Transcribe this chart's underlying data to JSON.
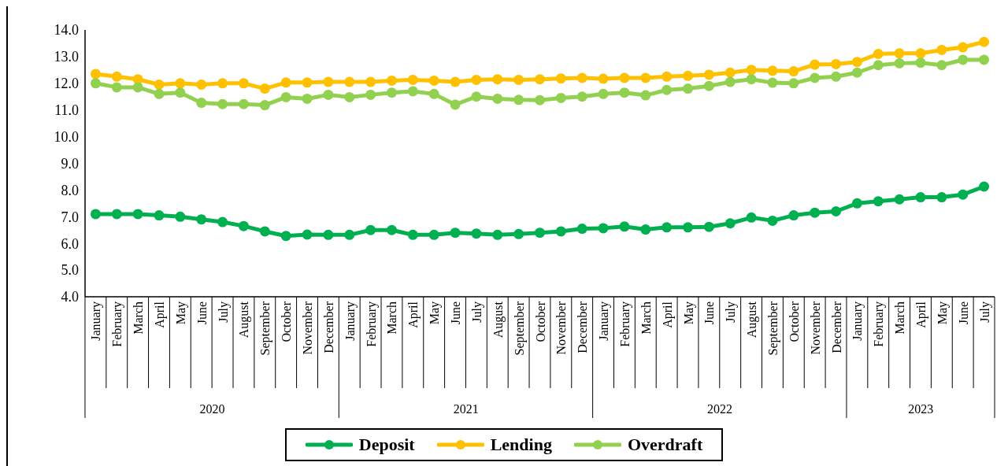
{
  "chart_data": {
    "type": "line",
    "categories": [
      "January",
      "February",
      "March",
      "April",
      "May",
      "June",
      "July",
      "August",
      "September",
      "October",
      "November",
      "December",
      "January",
      "February",
      "March",
      "April",
      "May",
      "June",
      "July",
      "August",
      "September",
      "October",
      "November",
      "December",
      "January",
      "February",
      "March",
      "April",
      "May",
      "June",
      "July",
      "August",
      "September",
      "October",
      "November",
      "December",
      "January",
      "February",
      "March",
      "April",
      "May",
      "June",
      "July"
    ],
    "annotations": [
      "2020",
      "2021",
      "2022",
      "2023"
    ],
    "series": [
      {
        "name": "Deposit",
        "color": "#00b050",
        "values": [
          7.1,
          7.1,
          7.1,
          7.05,
          7.0,
          6.9,
          6.8,
          6.65,
          6.45,
          6.28,
          6.33,
          6.32,
          6.32,
          6.5,
          6.5,
          6.32,
          6.32,
          6.4,
          6.37,
          6.32,
          6.35,
          6.4,
          6.45,
          6.55,
          6.57,
          6.63,
          6.52,
          6.6,
          6.6,
          6.62,
          6.75,
          6.97,
          6.85,
          7.05,
          7.15,
          7.2,
          7.5,
          7.58,
          7.65,
          7.73,
          7.73,
          7.83,
          8.13
        ]
      },
      {
        "name": "Lending",
        "color": "#ffc000",
        "values": [
          12.35,
          12.25,
          12.15,
          11.95,
          12.0,
          11.95,
          12.0,
          12.0,
          11.8,
          12.03,
          12.03,
          12.05,
          12.05,
          12.05,
          12.1,
          12.13,
          12.1,
          12.05,
          12.13,
          12.15,
          12.13,
          12.15,
          12.18,
          12.2,
          12.17,
          12.2,
          12.2,
          12.25,
          12.28,
          12.32,
          12.4,
          12.5,
          12.47,
          12.45,
          12.7,
          12.72,
          12.8,
          13.1,
          13.12,
          13.12,
          13.25,
          13.35,
          13.55
        ]
      },
      {
        "name": "Overdraft",
        "color": "#92d050",
        "values": [
          12.0,
          11.85,
          11.85,
          11.6,
          11.65,
          11.27,
          11.22,
          11.22,
          11.18,
          11.48,
          11.42,
          11.57,
          11.48,
          11.57,
          11.65,
          11.7,
          11.6,
          11.2,
          11.5,
          11.42,
          11.38,
          11.37,
          11.45,
          11.5,
          11.6,
          11.65,
          11.55,
          11.75,
          11.8,
          11.9,
          12.05,
          12.15,
          12.02,
          12.0,
          12.2,
          12.25,
          12.4,
          12.68,
          12.75,
          12.77,
          12.68,
          12.88,
          12.88
        ]
      }
    ],
    "ylim": [
      4,
      14
    ],
    "yticks": [
      {
        "value": 4,
        "label": "4.0"
      },
      {
        "value": 5,
        "label": "5.0"
      },
      {
        "value": 6,
        "label": "6.0"
      },
      {
        "value": 7,
        "label": "7.0"
      },
      {
        "value": 8,
        "label": "8.0"
      },
      {
        "value": 9,
        "label": "9.0"
      },
      {
        "value": 10,
        "label": "10.0"
      },
      {
        "value": 11,
        "label": "11.0"
      },
      {
        "value": 12,
        "label": "12.0"
      },
      {
        "value": 13,
        "label": "13.0"
      },
      {
        "value": 14,
        "label": "14.0"
      }
    ],
    "grid": false,
    "legend": "bottom",
    "marker": "circle",
    "line_style": "solid"
  }
}
